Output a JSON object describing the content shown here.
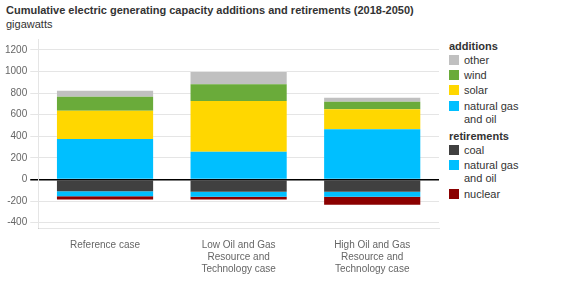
{
  "chart_data": {
    "type": "bar",
    "title": "Cumulative electric generating capacity additions and retirements (2018-2050)",
    "subtitle": "gigawatts",
    "categories": [
      "Reference case",
      "Low Oil and Gas\nResource and\nTechnology case",
      "High Oil and Gas\nResource and\nTechnology case"
    ],
    "stacked": true,
    "series": [
      {
        "name": "natural gas\nand oil",
        "group": "additions",
        "color": "#00BFFF",
        "values": [
          375,
          255,
          465
        ]
      },
      {
        "name": "solar",
        "group": "additions",
        "color": "#FFD700",
        "values": [
          260,
          470,
          185
        ]
      },
      {
        "name": "wind",
        "group": "additions",
        "color": "#6AAB3A",
        "values": [
          130,
          155,
          70
        ]
      },
      {
        "name": "other",
        "group": "additions",
        "color": "#C0C0C0",
        "values": [
          55,
          115,
          35
        ]
      },
      {
        "name": "coal",
        "group": "retirements",
        "color": "#404040",
        "values": [
          -110,
          -115,
          -115
        ]
      },
      {
        "name": "natural gas\nand oil",
        "group": "retirements",
        "color": "#00BFFF",
        "values": [
          -45,
          -45,
          -45
        ]
      },
      {
        "name": "nuclear",
        "group": "retirements",
        "color": "#8B0000",
        "values": [
          -30,
          -25,
          -75
        ]
      }
    ],
    "ylim": [
      -450,
      1300
    ],
    "yticks": [
      -400,
      -200,
      0,
      200,
      400,
      600,
      800,
      1000,
      1200
    ],
    "grid": true
  }
}
